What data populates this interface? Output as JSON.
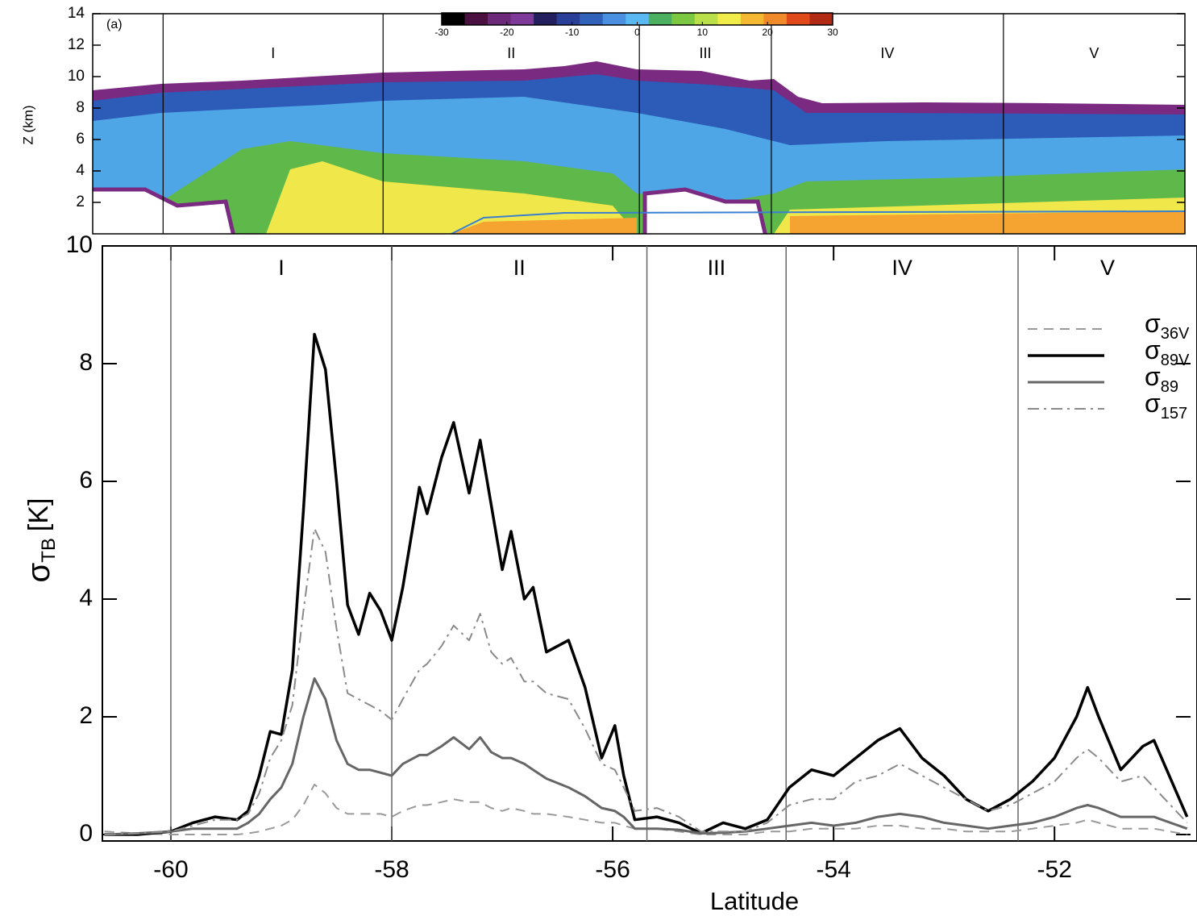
{
  "chart_data": [
    {
      "type": "image",
      "title": "(a)",
      "ylabel": "Z (km)",
      "ylim": [
        0,
        14
      ],
      "yticks": [
        2,
        4,
        6,
        8,
        10,
        12,
        14
      ],
      "xlim": [
        -60.64,
        -50.71
      ],
      "regions": {
        "labels": [
          "I",
          "II",
          "III",
          "IV",
          "V"
        ],
        "bounds": [
          -60,
          -58,
          -55.67,
          -54.47,
          -52.36
        ]
      },
      "colorbar": {
        "lim": [
          -30,
          30
        ],
        "ticks": [
          -30,
          -20,
          -10,
          0,
          10,
          20,
          30
        ],
        "colors": [
          "#000000",
          "#4a1040",
          "#6e2a7a",
          "#7e3a98",
          "#24205e",
          "#2a3f98",
          "#2f62b8",
          "#4a8fe0",
          "#5ab8f2",
          "#4cb060",
          "#7dc843",
          "#b9e04a",
          "#f2ec4a",
          "#f4b832",
          "#f08a2a",
          "#e04a1a",
          "#b22a14"
        ]
      }
    },
    {
      "type": "line",
      "xlabel": "Latitude",
      "ylabel": {
        "symbol": "σ",
        "subscript": "TB",
        "unit": "[K]"
      },
      "xlim": [
        -60.62,
        -50.71
      ],
      "ylim": [
        -0.11,
        10
      ],
      "xticks": [
        -60,
        -58,
        -56,
        -54,
        -52
      ],
      "yticks": [
        0,
        2,
        4,
        6,
        8,
        10
      ],
      "legend": "upper right",
      "regions": {
        "labels": [
          "I",
          "II",
          "III",
          "IV",
          "V"
        ],
        "bounds": [
          -60,
          -58,
          -55.69,
          -54.43,
          -52.33
        ]
      },
      "x": [
        -60.6,
        -60.3,
        -60.0,
        -59.8,
        -59.6,
        -59.4,
        -59.3,
        -59.2,
        -59.1,
        -59.0,
        -58.9,
        -58.8,
        -58.7,
        -58.6,
        -58.5,
        -58.4,
        -58.3,
        -58.2,
        -58.1,
        -58.0,
        -57.9,
        -57.75,
        -57.68,
        -57.55,
        -57.44,
        -57.3,
        -57.2,
        -57.1,
        -57.0,
        -56.92,
        -56.8,
        -56.72,
        -56.6,
        -56.4,
        -56.25,
        -56.1,
        -55.98,
        -55.9,
        -55.8,
        -55.6,
        -55.4,
        -55.2,
        -55.0,
        -54.8,
        -54.6,
        -54.4,
        -54.2,
        -54.0,
        -53.8,
        -53.6,
        -53.4,
        -53.2,
        -53.0,
        -52.8,
        -52.6,
        -52.4,
        -52.2,
        -52.0,
        -51.8,
        -51.7,
        -51.6,
        -51.4,
        -51.2,
        -51.1,
        -50.8
      ],
      "series": [
        {
          "name": "σ36V",
          "color": "#9a9a9a",
          "dash": "12,8",
          "width": 2,
          "values": [
            0.05,
            0.02,
            0,
            0,
            0,
            0,
            0.02,
            0.05,
            0.1,
            0.15,
            0.25,
            0.5,
            0.85,
            0.7,
            0.45,
            0.35,
            0.35,
            0.35,
            0.35,
            0.3,
            0.4,
            0.5,
            0.5,
            0.55,
            0.6,
            0.55,
            0.55,
            0.45,
            0.4,
            0.45,
            0.4,
            0.35,
            0.35,
            0.3,
            0.25,
            0.2,
            0.2,
            0.15,
            0.1,
            0.1,
            0.05,
            0,
            0,
            0,
            0.05,
            0.05,
            0.1,
            0.1,
            0.1,
            0.15,
            0.15,
            0.1,
            0.1,
            0.05,
            0.05,
            0.05,
            0.1,
            0.15,
            0.2,
            0.25,
            0.2,
            0.1,
            0.1,
            0.1,
            0
          ]
        },
        {
          "name": "σ89V",
          "color": "#000000",
          "dash": "none",
          "width": 3.5,
          "values": [
            0,
            0,
            0.05,
            0.2,
            0.3,
            0.25,
            0.4,
            1.0,
            1.75,
            1.7,
            2.8,
            5.5,
            8.5,
            7.9,
            6.0,
            3.9,
            3.4,
            4.1,
            3.8,
            3.3,
            4.2,
            5.9,
            5.45,
            6.4,
            7.0,
            5.8,
            6.7,
            5.6,
            4.5,
            5.15,
            4.0,
            4.2,
            3.1,
            3.3,
            2.5,
            1.3,
            1.85,
            1.0,
            0.25,
            0.3,
            0.2,
            0.02,
            0.2,
            0.1,
            0.25,
            0.8,
            1.1,
            1.0,
            1.3,
            1.6,
            1.8,
            1.3,
            1.0,
            0.6,
            0.4,
            0.6,
            0.9,
            1.3,
            2.0,
            2.5,
            2.0,
            1.1,
            1.5,
            1.6,
            0.3
          ]
        },
        {
          "name": "σ89",
          "color": "#666666",
          "dash": "none",
          "width": 3,
          "values": [
            0,
            0.02,
            0.05,
            0.1,
            0.1,
            0.1,
            0.2,
            0.35,
            0.6,
            0.8,
            1.2,
            2.0,
            2.65,
            2.3,
            1.6,
            1.2,
            1.1,
            1.1,
            1.05,
            1.0,
            1.2,
            1.35,
            1.35,
            1.5,
            1.65,
            1.45,
            1.65,
            1.4,
            1.3,
            1.3,
            1.2,
            1.1,
            0.95,
            0.8,
            0.65,
            0.45,
            0.4,
            0.3,
            0.1,
            0.1,
            0.08,
            0.02,
            0.03,
            0.05,
            0.1,
            0.15,
            0.2,
            0.15,
            0.2,
            0.3,
            0.35,
            0.3,
            0.2,
            0.15,
            0.1,
            0.15,
            0.2,
            0.3,
            0.45,
            0.5,
            0.45,
            0.3,
            0.3,
            0.3,
            0.1
          ]
        },
        {
          "name": "σ157",
          "color": "#8a8a8a",
          "dash": "14,6,3,6",
          "width": 2,
          "values": [
            0,
            0.02,
            0.05,
            0.15,
            0.25,
            0.25,
            0.35,
            0.7,
            1.3,
            1.6,
            2.2,
            3.8,
            5.2,
            4.8,
            3.5,
            2.4,
            2.3,
            2.2,
            2.1,
            1.95,
            2.3,
            2.8,
            2.9,
            3.2,
            3.55,
            3.3,
            3.75,
            3.1,
            2.9,
            3.0,
            2.6,
            2.6,
            2.4,
            2.3,
            1.8,
            1.2,
            1.1,
            0.8,
            0.4,
            0.45,
            0.3,
            0.05,
            0.05,
            0.05,
            0.2,
            0.5,
            0.6,
            0.6,
            0.9,
            1.0,
            1.2,
            1.0,
            0.8,
            0.6,
            0.4,
            0.5,
            0.7,
            0.9,
            1.3,
            1.45,
            1.3,
            0.9,
            1.0,
            0.8,
            0.2
          ]
        }
      ]
    }
  ]
}
